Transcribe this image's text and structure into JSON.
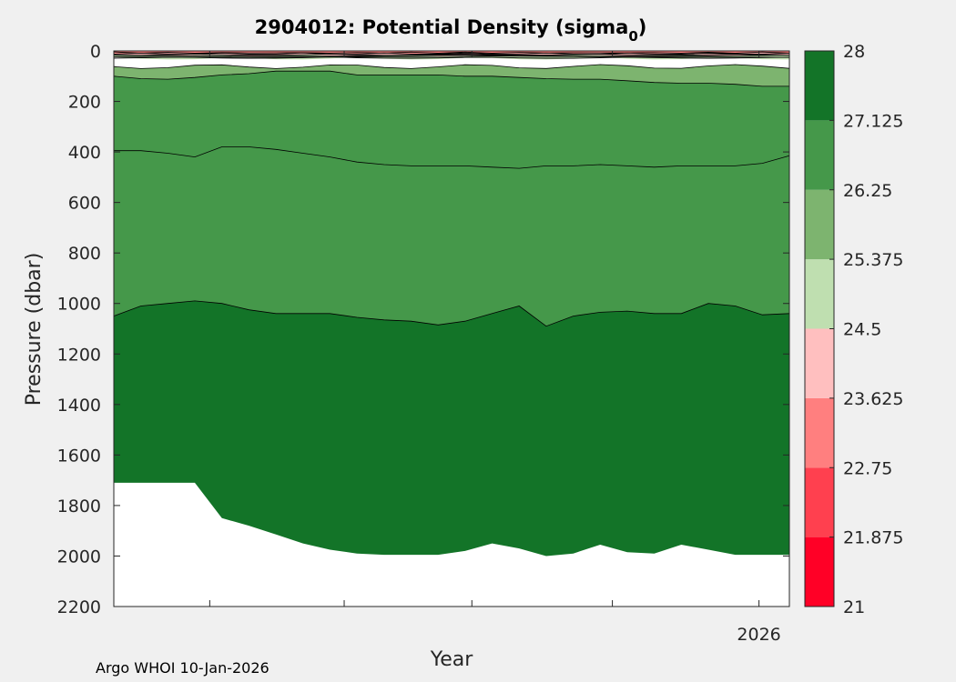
{
  "chart_data": {
    "type": "contourf",
    "title_main": "2904012: Potential Density (sigma",
    "title_sub": "0",
    "title_close": ")",
    "xlabel": "Year",
    "ylabel": "Pressure (dbar)",
    "x_tick_labels": [
      "",
      "",
      "",
      "",
      "",
      "2026"
    ],
    "xlim_note": "profile time axis, only 2026 labeled",
    "ylim": [
      0,
      2200
    ],
    "y_ticks": [
      0,
      200,
      400,
      600,
      800,
      1000,
      1200,
      1400,
      1600,
      1800,
      2000,
      2200
    ],
    "colorbar": {
      "levels": [
        21,
        21.875,
        22.75,
        23.625,
        24.5,
        25.375,
        26.25,
        27.125,
        28
      ],
      "tick_labels": [
        "21",
        "21.875",
        "22.75",
        "23.625",
        "24.5",
        "25.375",
        "26.25",
        "27.125",
        "28"
      ],
      "colors": [
        "#ff0026",
        "#ff404f",
        "#ff7f7f",
        "#ffbfbf",
        "#bfdfb0",
        "#7db46f",
        "#45984a",
        "#137428"
      ]
    },
    "profile_x": [
      0,
      0.04,
      0.08,
      0.12,
      0.16,
      0.2,
      0.24,
      0.28,
      0.32,
      0.36,
      0.4,
      0.44,
      0.48,
      0.52,
      0.56,
      0.6,
      0.64,
      0.68,
      0.72,
      0.76,
      0.8,
      0.84,
      0.88,
      0.92,
      0.96,
      1.0
    ],
    "contours": [
      {
        "level": "26.25",
        "pressure": [
          100,
          110,
          112,
          105,
          95,
          90,
          80,
          80,
          80,
          95,
          95,
          95,
          95,
          100,
          100,
          105,
          110,
          112,
          112,
          118,
          125,
          128,
          128,
          132,
          140,
          140
        ]
      },
      {
        "level": "26.6875",
        "pressure": [
          395,
          395,
          405,
          420,
          380,
          380,
          390,
          405,
          420,
          440,
          450,
          455,
          455,
          455,
          460,
          465,
          455,
          455,
          450,
          455,
          460,
          455,
          455,
          455,
          445,
          415
        ]
      },
      {
        "level": "27.125",
        "pressure": [
          1050,
          1010,
          1000,
          990,
          1000,
          1025,
          1040,
          1040,
          1040,
          1055,
          1065,
          1070,
          1085,
          1070,
          1040,
          1010,
          1090,
          1050,
          1035,
          1030,
          1040,
          1040,
          1000,
          1010,
          1045,
          1040
        ]
      }
    ],
    "max_pressure": [
      1710,
      1710,
      1710,
      1710,
      1850,
      1880,
      1915,
      1950,
      1975,
      1990,
      1995,
      1995,
      1995,
      1980,
      1950,
      1970,
      2000,
      1990,
      1955,
      1985,
      1990,
      1955,
      1975,
      1995,
      1995,
      1995
    ],
    "footer": "Argo WHOI 10-Jan-2026"
  }
}
